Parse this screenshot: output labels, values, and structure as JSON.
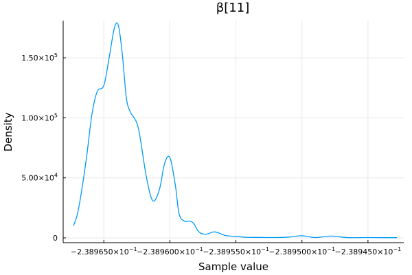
{
  "chart_data": {
    "type": "line",
    "title": "β[11]",
    "xlabel": "Sample value",
    "ylabel": "Density",
    "xlim": [
      -2.3896808,
      -2.3894229
    ],
    "ylim": [
      -4000,
      181000
    ],
    "grid": true,
    "legend": "none",
    "x_ticks": [
      {
        "value": -2.38965,
        "mantissa": "−2.389650",
        "exp": "−1"
      },
      {
        "value": -2.3896,
        "mantissa": "−2.389600",
        "exp": "−1"
      },
      {
        "value": -2.38955,
        "mantissa": "−2.389550",
        "exp": "−1"
      },
      {
        "value": -2.3895,
        "mantissa": "−2.389500",
        "exp": "−1"
      },
      {
        "value": -2.38945,
        "mantissa": "−2.389450",
        "exp": "−1"
      }
    ],
    "y_ticks": [
      {
        "value": 0,
        "mantissa": "0",
        "exp": ""
      },
      {
        "value": 50000,
        "mantissa": "5.00×10",
        "exp": "4"
      },
      {
        "value": 100000,
        "mantissa": "1.00×10",
        "exp": "5"
      },
      {
        "value": 150000,
        "mantissa": "1.50×10",
        "exp": "5"
      }
    ],
    "series": [
      {
        "color": "#009af9",
        "x": [
          -2.389673,
          -2.38967,
          -2.389667,
          -2.389663,
          -2.389659,
          -2.389655,
          -2.38965,
          -2.389646,
          -2.389642,
          -2.389639,
          -2.389636,
          -2.389633,
          -2.38963,
          -2.389624,
          -2.389618,
          -2.389613,
          -2.389608,
          -2.389604,
          -2.3896,
          -2.389596,
          -2.389593,
          -2.389589,
          -2.389585,
          -2.389582,
          -2.389578,
          -2.389573,
          -2.389566,
          -2.389558,
          -2.38955,
          -2.389542,
          -2.389533,
          -2.38952,
          -2.38951,
          -2.3895,
          -2.38949,
          -2.389478,
          -2.389465,
          -2.389452,
          -2.38944,
          -2.389428
        ],
        "y": [
          10000,
          20000,
          38000,
          68000,
          103000,
          122000,
          127000,
          150000,
          175000,
          177000,
          153000,
          117000,
          105000,
          92000,
          52000,
          31000,
          40000,
          62000,
          67000,
          45000,
          20000,
          14000,
          14000,
          12000,
          5000,
          3000,
          5000,
          2000,
          1200,
          500,
          400,
          300,
          700,
          1800,
          300,
          1500,
          200,
          300,
          200,
          200
        ]
      }
    ]
  }
}
